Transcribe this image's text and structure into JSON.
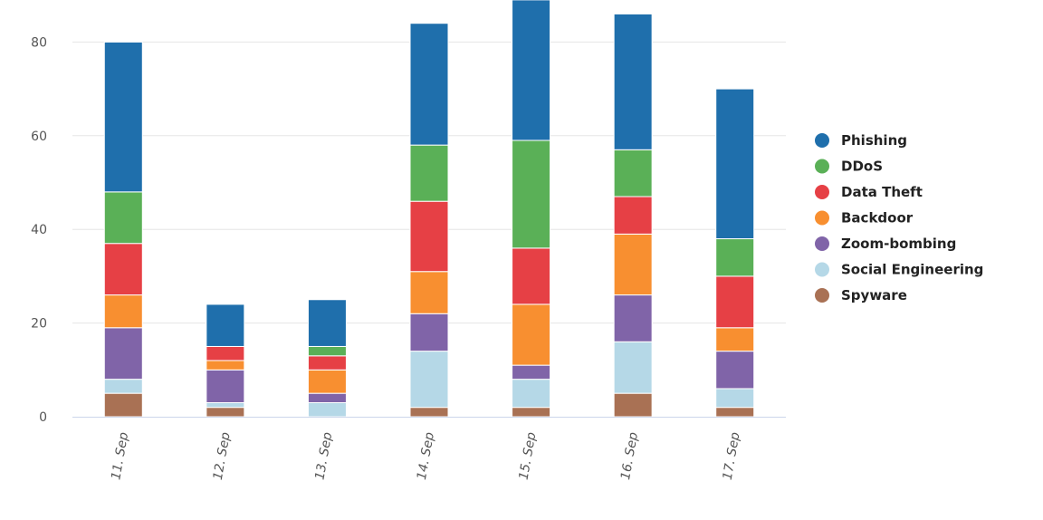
{
  "chart_data": {
    "type": "bar",
    "stacked": true,
    "title": "",
    "xlabel": "",
    "ylabel": "",
    "ylim": [
      0,
      90
    ],
    "yticks": [
      0,
      20,
      40,
      60,
      80
    ],
    "grid": true,
    "legend_position": "right",
    "categories": [
      "11. Sep",
      "12. Sep",
      "13. Sep",
      "14. Sep",
      "15. Sep",
      "16. Sep",
      "17. Sep"
    ],
    "series": [
      {
        "name": "Spyware",
        "color": "#a97154",
        "values": [
          5,
          2,
          0,
          2,
          2,
          5,
          2
        ]
      },
      {
        "name": "Social Engineering",
        "color": "#b5d8e7",
        "values": [
          3,
          1,
          3,
          12,
          6,
          11,
          4
        ]
      },
      {
        "name": "Zoom-bombing",
        "color": "#8064a8",
        "values": [
          11,
          7,
          2,
          8,
          3,
          10,
          8
        ]
      },
      {
        "name": "Backdoor",
        "color": "#f88f30",
        "values": [
          7,
          2,
          5,
          9,
          13,
          13,
          5
        ]
      },
      {
        "name": "Data Theft",
        "color": "#e64045",
        "values": [
          11,
          3,
          3,
          15,
          12,
          8,
          11
        ]
      },
      {
        "name": "DDoS",
        "color": "#5ab057",
        "values": [
          11,
          0,
          2,
          12,
          23,
          10,
          8
        ]
      },
      {
        "name": "Phishing",
        "color": "#1f6fac",
        "values": [
          32,
          9,
          10,
          26,
          30,
          29,
          32
        ]
      }
    ],
    "legend_order": [
      "Phishing",
      "DDoS",
      "Data Theft",
      "Backdoor",
      "Zoom-bombing",
      "Social Engineering",
      "Spyware"
    ]
  }
}
